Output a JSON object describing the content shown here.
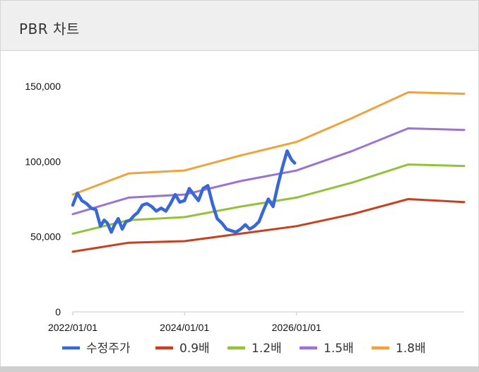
{
  "panel": {
    "title": "PBR 차트"
  },
  "chart_data": {
    "type": "line",
    "ylim": [
      0,
      150000
    ],
    "y_ticks": [
      0,
      50000,
      100000,
      150000
    ],
    "y_tick_labels": [
      "0",
      "50,000",
      "100,000",
      "150,000"
    ],
    "xlim": [
      "2022-01-01",
      "2028-12-31"
    ],
    "x_ticks": [
      "2022-01-01",
      "2024-01-01",
      "2026-01-01"
    ],
    "x_tick_labels": [
      "2022/01/01",
      "2024/01/01",
      "2026/01/01"
    ],
    "legend_position": "bottom",
    "series": [
      {
        "name": "수정주가",
        "color": "#3867d6",
        "width": 4.5,
        "x": [
          "2022-01-01",
          "2022-01-31",
          "2022-03-01",
          "2022-04-01",
          "2022-05-01",
          "2022-06-01",
          "2022-07-01",
          "2022-07-25",
          "2022-08-15",
          "2022-09-10",
          "2022-10-01",
          "2022-10-25",
          "2022-11-20",
          "2022-12-15",
          "2023-01-10",
          "2023-02-05",
          "2023-03-01",
          "2023-04-01",
          "2023-05-01",
          "2023-06-01",
          "2023-07-01",
          "2023-08-01",
          "2023-09-01",
          "2023-10-01",
          "2023-11-01",
          "2023-12-01",
          "2024-01-01",
          "2024-02-01",
          "2024-03-01",
          "2024-04-01",
          "2024-05-01",
          "2024-06-01",
          "2024-07-01",
          "2024-08-01",
          "2024-09-01",
          "2024-10-01",
          "2024-11-01",
          "2024-12-01",
          "2025-01-01",
          "2025-02-01",
          "2025-03-01",
          "2025-04-01",
          "2025-05-01",
          "2025-06-01",
          "2025-07-01",
          "2025-08-01",
          "2025-09-01",
          "2025-10-01",
          "2025-11-01",
          "2025-11-20",
          "2025-12-01",
          "2025-12-20"
        ],
        "values": [
          71000,
          79000,
          74000,
          72000,
          69000,
          68000,
          57000,
          61000,
          59000,
          53000,
          58000,
          62000,
          55000,
          60000,
          61000,
          64000,
          66000,
          71000,
          72000,
          70000,
          67000,
          69000,
          67000,
          72000,
          78000,
          73000,
          74000,
          82000,
          78000,
          74000,
          82000,
          84000,
          72000,
          62000,
          59000,
          55000,
          54000,
          53000,
          55000,
          58000,
          55000,
          57000,
          60000,
          68000,
          75000,
          70000,
          84000,
          96000,
          107000,
          103000,
          101000,
          99000
        ]
      },
      {
        "name": "0.9배",
        "color": "#c8401e",
        "width": 3,
        "x": [
          "2022-01-01",
          "2023-01-01",
          "2024-01-01",
          "2025-01-01",
          "2026-01-01",
          "2027-01-01",
          "2028-01-01",
          "2028-12-31"
        ],
        "values": [
          40000,
          46000,
          47000,
          52000,
          57000,
          65000,
          75000,
          73000
        ]
      },
      {
        "name": "1.2배",
        "color": "#94c13c",
        "width": 3,
        "x": [
          "2022-01-01",
          "2023-01-01",
          "2024-01-01",
          "2025-01-01",
          "2026-01-01",
          "2027-01-01",
          "2028-01-01",
          "2028-12-31"
        ],
        "values": [
          52000,
          61000,
          63000,
          70000,
          76000,
          86000,
          98000,
          97000
        ]
      },
      {
        "name": "1.5배",
        "color": "#9b74d3",
        "width": 3,
        "x": [
          "2022-01-01",
          "2023-01-01",
          "2024-01-01",
          "2025-01-01",
          "2026-01-01",
          "2027-01-01",
          "2028-01-01",
          "2028-12-31"
        ],
        "values": [
          65000,
          76000,
          78000,
          87000,
          94000,
          107000,
          122000,
          121000
        ]
      },
      {
        "name": "1.8배",
        "color": "#f0a33a",
        "width": 3,
        "x": [
          "2022-01-01",
          "2023-01-01",
          "2024-01-01",
          "2025-01-01",
          "2026-01-01",
          "2027-01-01",
          "2028-01-01",
          "2028-12-31"
        ],
        "values": [
          78000,
          92000,
          94000,
          104000,
          113000,
          129000,
          146000,
          145000
        ]
      }
    ]
  }
}
